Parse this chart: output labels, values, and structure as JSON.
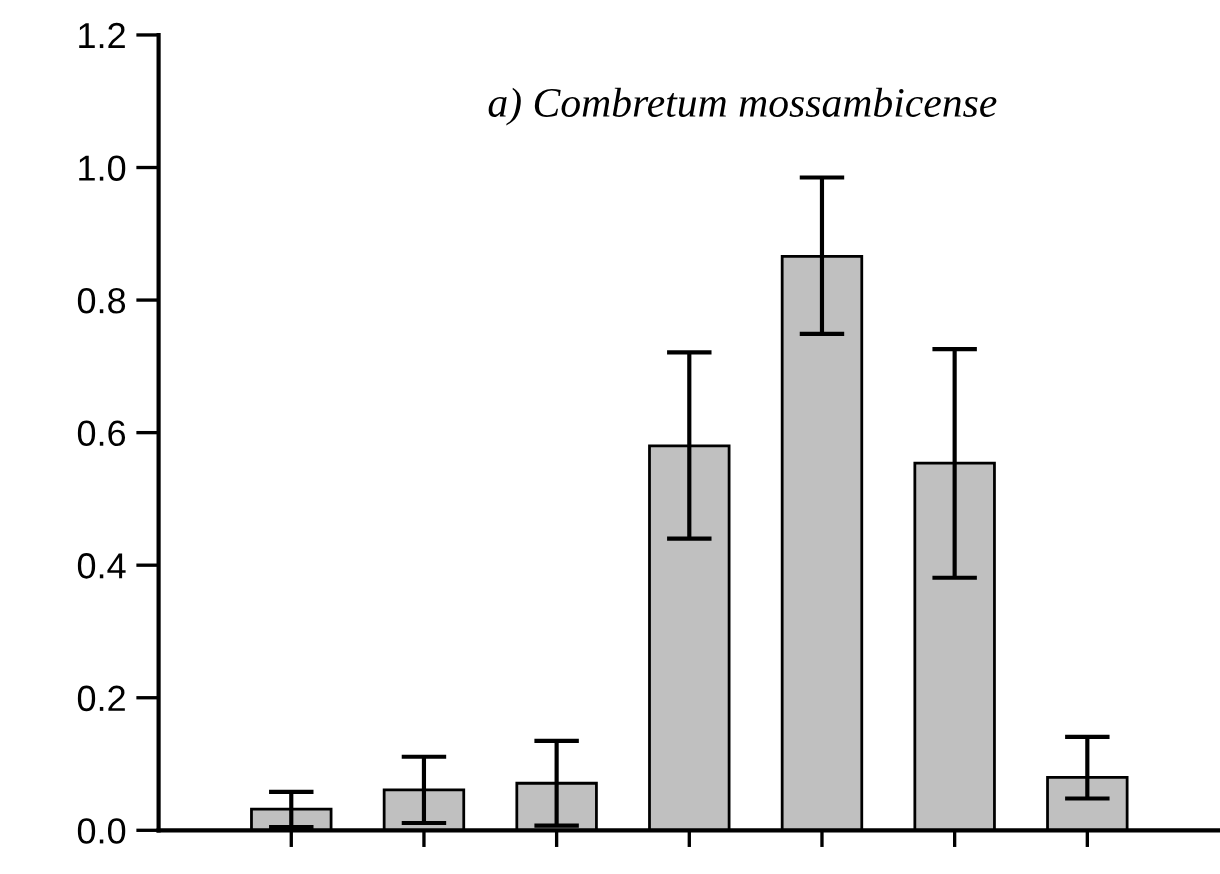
{
  "chart_data": {
    "type": "bar",
    "title": "a) Combretum mossambicense",
    "categories": [
      null,
      null,
      null,
      null,
      null,
      null,
      null
    ],
    "values": [
      0.032,
      0.061,
      0.071,
      0.58,
      0.866,
      0.554,
      0.08
    ],
    "errors": [
      [
        0.005,
        0.058
      ],
      [
        0.011,
        0.111
      ],
      [
        0.007,
        0.135
      ],
      [
        0.44,
        0.721
      ],
      [
        0.749,
        0.985
      ],
      [
        0.381,
        0.726
      ],
      [
        0.048,
        0.141
      ]
    ],
    "color": "#c0c0c0",
    "ylim": [
      0,
      1.2
    ],
    "yticks": [
      {
        "value": 0,
        "label": "0.0"
      },
      {
        "value": 0.2,
        "label": "0.2"
      },
      {
        "value": 0.4,
        "label": "0.4"
      },
      {
        "value": 0.6,
        "label": "0.6"
      },
      {
        "value": 0.8,
        "label": "0.8"
      },
      {
        "value": 1.0,
        "label": "1.0"
      },
      {
        "value": 1.2,
        "label": "1.2"
      }
    ],
    "tick_labels": "y",
    "grid": false,
    "legend": false
  }
}
